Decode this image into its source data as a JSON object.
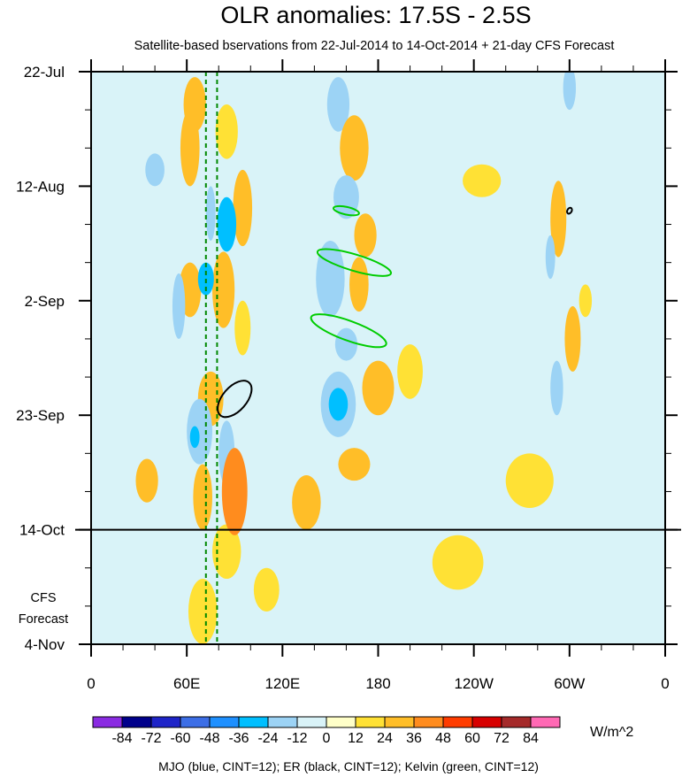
{
  "colors": {
    "background": "#ffffff",
    "plot_bg": "#d9f3f8",
    "mjo": "#0000ff",
    "er": "#000000",
    "kelvin": "#00cc00",
    "dashed_lines": "#008800"
  },
  "chart_data": {
    "type": "heatmap",
    "title": "OLR anomalies: 17.5S - 2.5S",
    "subtitle": "Satellite-based bservations from 22-Jul-2014 to 14-Oct-2014 + 21-day CFS Forecast",
    "footer": "MJO (blue, CINT=12); ER (black, CINT=12); Kelvin (green, CINT=12)",
    "x_ticks": [
      {
        "label": "0",
        "lon": 0
      },
      {
        "label": "60E",
        "lon": 60
      },
      {
        "label": "120E",
        "lon": 120
      },
      {
        "label": "180",
        "lon": 180
      },
      {
        "label": "120W",
        "lon": 240
      },
      {
        "label": "60W",
        "lon": 300
      },
      {
        "label": "0",
        "lon": 360
      }
    ],
    "xlim": [
      0,
      360
    ],
    "y_ticks": [
      {
        "label": "22-Jul",
        "day": 0
      },
      {
        "label": "12-Aug",
        "day": 21
      },
      {
        "label": "2-Sep",
        "day": 42
      },
      {
        "label": "23-Sep",
        "day": 63
      },
      {
        "label": "14-Oct",
        "day": 84
      },
      {
        "label": "4-Nov",
        "day": 105
      }
    ],
    "ylim": [
      0,
      105
    ],
    "forecast_start_day": 84,
    "forecast_label": [
      "CFS",
      "Forecast"
    ],
    "dashed_lon": [
      72,
      79
    ],
    "colorbar": {
      "labels": [
        "-84",
        "-72",
        "-60",
        "-48",
        "-36",
        "-24",
        "-12",
        "0",
        "12",
        "24",
        "36",
        "48",
        "60",
        "72",
        "84"
      ],
      "colors": [
        "#8a2be2",
        "#00008b",
        "#1e24c8",
        "#3c6ee6",
        "#1e90ff",
        "#00bfff",
        "#9cd3f5",
        "#d9f3f8",
        "#ffffc8",
        "#ffe135",
        "#ffbe28",
        "#ff8c1e",
        "#ff3c00",
        "#d70000",
        "#a52a2a",
        "#ff69b4"
      ],
      "units": "W/m^2"
    },
    "regions": [
      {
        "lon": 65,
        "day": 6,
        "rx": 7,
        "ry": 5,
        "value": 24
      },
      {
        "lon": 62,
        "day": 14,
        "rx": 6,
        "ry": 7,
        "value": 24
      },
      {
        "lon": 85,
        "day": 11,
        "rx": 7,
        "ry": 5,
        "value": 12
      },
      {
        "lon": 40,
        "day": 18,
        "rx": 6,
        "ry": 3,
        "value": -24
      },
      {
        "lon": 85,
        "day": 28,
        "rx": 6,
        "ry": 5,
        "value": -36
      },
      {
        "lon": 95,
        "day": 25,
        "rx": 6,
        "ry": 7,
        "value": 24
      },
      {
        "lon": 75,
        "day": 26,
        "rx": 3,
        "ry": 5,
        "value": -24
      },
      {
        "lon": 83,
        "day": 40,
        "rx": 7,
        "ry": 7,
        "value": 24
      },
      {
        "lon": 62,
        "day": 40,
        "rx": 7,
        "ry": 5,
        "value": 24
      },
      {
        "lon": 55,
        "day": 43,
        "rx": 4,
        "ry": 6,
        "value": -24
      },
      {
        "lon": 72,
        "day": 38,
        "rx": 5,
        "ry": 3,
        "value": -36
      },
      {
        "lon": 95,
        "day": 47,
        "rx": 5,
        "ry": 5,
        "value": 12
      },
      {
        "lon": 75,
        "day": 60,
        "rx": 8,
        "ry": 5,
        "value": 24
      },
      {
        "lon": 68,
        "day": 66,
        "rx": 8,
        "ry": 6,
        "value": -24
      },
      {
        "lon": 65,
        "day": 67,
        "rx": 3,
        "ry": 2,
        "value": -36
      },
      {
        "lon": 85,
        "day": 70,
        "rx": 5,
        "ry": 6,
        "value": -24
      },
      {
        "lon": 90,
        "day": 77,
        "rx": 8,
        "ry": 8,
        "value": 36
      },
      {
        "lon": 70,
        "day": 78,
        "rx": 6,
        "ry": 6,
        "value": 24
      },
      {
        "lon": 35,
        "day": 75,
        "rx": 7,
        "ry": 4,
        "value": 24
      },
      {
        "lon": 135,
        "day": 79,
        "rx": 9,
        "ry": 5,
        "value": 24
      },
      {
        "lon": 155,
        "day": 6,
        "rx": 7,
        "ry": 5,
        "value": -24
      },
      {
        "lon": 165,
        "day": 14,
        "rx": 9,
        "ry": 6,
        "value": 24
      },
      {
        "lon": 160,
        "day": 23,
        "rx": 8,
        "ry": 4,
        "value": -24
      },
      {
        "lon": 172,
        "day": 30,
        "rx": 7,
        "ry": 4,
        "value": 24
      },
      {
        "lon": 150,
        "day": 38,
        "rx": 9,
        "ry": 7,
        "value": -24
      },
      {
        "lon": 168,
        "day": 39,
        "rx": 6,
        "ry": 5,
        "value": 24
      },
      {
        "lon": 160,
        "day": 50,
        "rx": 7,
        "ry": 3,
        "value": -24
      },
      {
        "lon": 180,
        "day": 58,
        "rx": 10,
        "ry": 5,
        "value": 24
      },
      {
        "lon": 155,
        "day": 61,
        "rx": 11,
        "ry": 6,
        "value": -24
      },
      {
        "lon": 155,
        "day": 61,
        "rx": 6,
        "ry": 3,
        "value": -36
      },
      {
        "lon": 165,
        "day": 72,
        "rx": 10,
        "ry": 3,
        "value": 24
      },
      {
        "lon": 200,
        "day": 55,
        "rx": 8,
        "ry": 5,
        "value": 12
      },
      {
        "lon": 300,
        "day": 3,
        "rx": 4,
        "ry": 4,
        "value": -24
      },
      {
        "lon": 293,
        "day": 27,
        "rx": 5,
        "ry": 7,
        "value": 24
      },
      {
        "lon": 288,
        "day": 34,
        "rx": 3,
        "ry": 4,
        "value": -24
      },
      {
        "lon": 302,
        "day": 49,
        "rx": 5,
        "ry": 6,
        "value": 24
      },
      {
        "lon": 292,
        "day": 58,
        "rx": 4,
        "ry": 5,
        "value": -24
      },
      {
        "lon": 310,
        "day": 42,
        "rx": 4,
        "ry": 3,
        "value": 12
      },
      {
        "lon": 245,
        "day": 20,
        "rx": 12,
        "ry": 3,
        "value": 12
      },
      {
        "lon": 20,
        "day": 45,
        "rx": 9,
        "ry": 3,
        "value": -12
      },
      {
        "lon": 30,
        "day": 55,
        "rx": 6,
        "ry": 3,
        "value": -12
      },
      {
        "lon": 165,
        "day": 99,
        "rx": 5,
        "ry": 4,
        "value": -12
      },
      {
        "lon": 70,
        "day": 99,
        "rx": 9,
        "ry": 6,
        "value": 12
      },
      {
        "lon": 85,
        "day": 88,
        "rx": 9,
        "ry": 5,
        "value": 12
      },
      {
        "lon": 230,
        "day": 90,
        "rx": 16,
        "ry": 5,
        "value": 12
      },
      {
        "lon": 110,
        "day": 95,
        "rx": 8,
        "ry": 4,
        "value": 12
      },
      {
        "lon": 275,
        "day": 75,
        "rx": 15,
        "ry": 5,
        "value": 12
      }
    ],
    "contours": [
      {
        "kind": "kelvin",
        "lon1": 142,
        "day1": 33,
        "lon2": 188,
        "day2": 37,
        "width": 1.5
      },
      {
        "kind": "kelvin",
        "lon1": 138,
        "day1": 45,
        "lon2": 185,
        "day2": 50,
        "width": 1.8
      },
      {
        "kind": "kelvin",
        "lon1": 152,
        "day1": 25,
        "lon2": 168,
        "day2": 26,
        "width": 0.7
      },
      {
        "kind": "er",
        "lon1": 81,
        "day1": 63,
        "lon2": 99,
        "day2": 57,
        "width": 2.2
      },
      {
        "kind": "er",
        "lon1": 299,
        "day1": 26,
        "lon2": 301,
        "day2": 25,
        "width": 0.4
      }
    ]
  }
}
